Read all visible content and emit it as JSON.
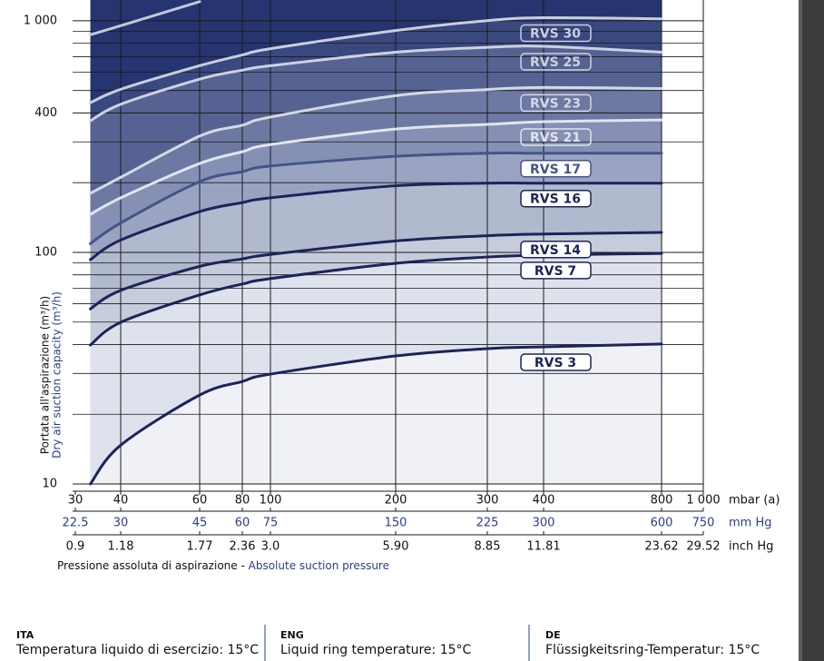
{
  "chart_data": {
    "type": "line",
    "y_label_ita": "Portata all'aspirazione (m³/h)",
    "y_label_eng": "Dry air suction capacity (m³/h)",
    "x_label_ita": "Pressione assoluta di aspirazione -",
    "x_label_eng": "Absolute suction pressure",
    "x_unit": "mbar (a)",
    "x2_unit": "mm Hg",
    "x3_unit": "inch Hg",
    "log_x": true,
    "log_y": true,
    "grid": true,
    "plot_bg": "#26346f",
    "xlim": [
      30,
      1000
    ],
    "xticks": [
      30,
      40,
      60,
      80,
      100,
      200,
      300,
      400,
      800,
      {
        "value": 1000,
        "label": "1 000"
      }
    ],
    "x2ticks": [
      22.5,
      30,
      45,
      60,
      75,
      150,
      225,
      300,
      600,
      750
    ],
    "x3ticks": [
      0.9,
      1.18,
      1.77,
      2.36,
      {
        "value": 3,
        "label": "3.0"
      },
      {
        "value": 5.9,
        "label": "5.90"
      },
      8.85,
      11.81,
      23.62,
      29.52
    ],
    "ylim": [
      10,
      1230
    ],
    "yticks": [
      10,
      100,
      400,
      {
        "value": 1000,
        "label": "1 000"
      }
    ],
    "yminorticks": [
      20,
      30,
      40,
      50,
      60,
      70,
      80,
      90,
      200,
      300,
      500,
      600,
      700,
      800,
      900
    ],
    "x": [
      33,
      40,
      60,
      80,
      100,
      200,
      300,
      400,
      800
    ],
    "series": [
      {
        "name": "RVS 3",
        "color": "#1b2559",
        "fill": "#eff1f7",
        "values": [
          10,
          14.7,
          24.2,
          27.7,
          29.8,
          35.7,
          38.4,
          39.1,
          40.2
        ]
      },
      {
        "name": "RVS 7",
        "color": "#1b2559",
        "fill": "#dee2ec",
        "values": [
          39.8,
          49.9,
          65.5,
          73,
          77,
          89.7,
          95.5,
          97.4,
          99
        ]
      },
      {
        "name": "RVS 14",
        "color": "#1b2559",
        "fill": "#c6ccdc",
        "values": [
          57,
          68.5,
          87,
          93.7,
          98,
          112,
          118,
          120,
          122
        ]
      },
      {
        "name": "RVS 16",
        "color": "#1b2559",
        "fill": "#b1b9cf",
        "values": [
          93,
          113,
          150,
          164,
          172,
          194,
          199,
          199,
          199
        ]
      },
      {
        "name": "RVS 17",
        "color": "#44548a",
        "fill": "#9aa4c2",
        "values": [
          109,
          134,
          202,
          223,
          236,
          260,
          268,
          268,
          268
        ]
      },
      {
        "name": "RVS 21",
        "color": "#e2e5ee",
        "fill": "#8590b4",
        "values": [
          146,
          172,
          242,
          272,
          292,
          341,
          357,
          367,
          373
        ]
      },
      {
        "name": "RVS 23",
        "color": "#d5d9e5",
        "fill": "#6d79a2",
        "values": [
          180,
          211,
          318,
          354,
          384,
          475,
          505,
          515,
          510
        ]
      },
      {
        "name": "RVS 25",
        "color": "#cdd2e0",
        "fill": "#566392",
        "values": [
          370,
          436,
          560,
          612,
          640,
          732,
          768,
          776,
          732
        ]
      },
      {
        "name": "RVS 30",
        "color": "#c8cedd",
        "fill": "#3a4880",
        "values": [
          443,
          506,
          640,
          712,
          758,
          908,
          1002,
          1031,
          1020
        ]
      },
      {
        "color": "#c2c8da",
        "values": [
          870,
          953,
          1210,
          null,
          null,
          null,
          null,
          null,
          null
        ]
      }
    ]
  },
  "footer": [
    {
      "lang": "ITA",
      "text": "Temperatura liquido di esercizio: 15°C"
    },
    {
      "lang": "ENG",
      "text": "Liquid ring temperature: 15°C"
    },
    {
      "lang": "DE",
      "text": "Flüssigkeitsring-Temperatur: 15°C"
    }
  ]
}
